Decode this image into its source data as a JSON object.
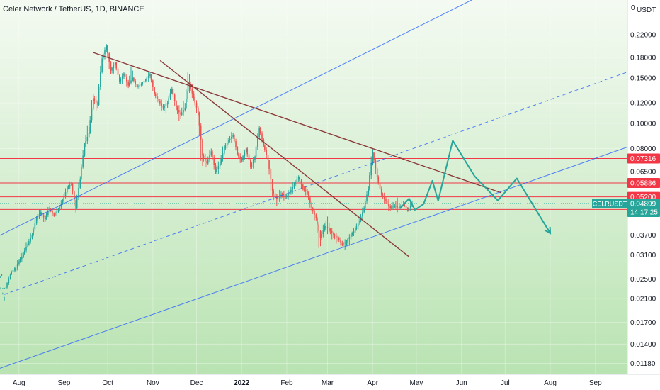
{
  "chart_data": {
    "type": "candlestick",
    "title": "Celer Network / TetherUS, 1D, BINANCE",
    "y_scale": "log",
    "y_unit": "USDT",
    "y_top_label": "0",
    "ylim": [
      0.0107,
      0.3
    ],
    "y_ticks": [
      "0.22000",
      "0.18000",
      "0.15000",
      "0.12000",
      "0.10000",
      "0.08000",
      "0.06500",
      "0.05200",
      "0.04899",
      "0.03700",
      "0.03100",
      "0.02500",
      "0.02100",
      "0.01700",
      "0.01400",
      "0.01180"
    ],
    "x_ticks": [
      "Aug",
      "Sep",
      "Oct",
      "Nov",
      "Dec",
      "2022",
      "Feb",
      "Mar",
      "Apr",
      "May",
      "Jun",
      "Jul",
      "Aug",
      "Sep"
    ],
    "x_range": [
      "2021-07-19",
      "2022-09-23"
    ],
    "horizontal_levels": [
      {
        "value": 0.07316,
        "label": "0.07316",
        "color": "#f23645"
      },
      {
        "value": 0.05886,
        "label": "0.05886",
        "color": "#f23645"
      },
      {
        "value": 0.052,
        "label": "0.05200",
        "color": "#f23645"
      },
      {
        "value": 0.04647,
        "label": "0.04647",
        "color": "#f23645"
      }
    ],
    "price_tag": {
      "symbol": "CELRUSDT",
      "price": "0.04899",
      "countdown": "14:17:25",
      "color": "#26a69a"
    },
    "trendlines": [
      {
        "role": "channel-upper",
        "color": "#2962ff",
        "style": "solid",
        "from": [
          "2021-07-19",
          0.0369
        ],
        "to": [
          "2022-06-08",
          0.3
        ]
      },
      {
        "role": "channel-middle",
        "color": "#2962ff",
        "style": "dashed",
        "from": [
          "2021-07-22",
          0.0218
        ],
        "to": [
          "2022-09-23",
          0.158
        ]
      },
      {
        "role": "channel-lower",
        "color": "#2962ff",
        "style": "solid",
        "from": [
          "2021-07-19",
          0.0113
        ],
        "to": [
          "2022-09-23",
          0.081
        ]
      },
      {
        "role": "resistance",
        "color": "#8b3a3a",
        "style": "solid",
        "from": [
          "2021-09-21",
          0.188
        ],
        "to": [
          "2022-06-28",
          0.054
        ]
      },
      {
        "role": "resistance",
        "color": "#8b3a3a",
        "style": "solid",
        "from": [
          "2021-11-06",
          0.175
        ],
        "to": [
          "2022-04-26",
          0.0305
        ]
      }
    ],
    "projection_path": {
      "color": "#26a69a",
      "points": [
        [
          "2022-04-20",
          0.047
        ],
        [
          "2022-04-26",
          0.0512
        ],
        [
          "2022-04-30",
          0.0463
        ],
        [
          "2022-05-06",
          0.0488
        ],
        [
          "2022-05-12",
          0.06
        ],
        [
          "2022-05-16",
          0.0502
        ],
        [
          "2022-05-26",
          0.0858
        ],
        [
          "2022-06-10",
          0.0625
        ],
        [
          "2022-06-26",
          0.0503
        ],
        [
          "2022-07-09",
          0.0613
        ],
        [
          "2022-08-01",
          0.0376
        ]
      ]
    },
    "candles": [
      [
        "2021-07-19",
        0.0248,
        0.0262,
        0.0232,
        0.0228
      ],
      [
        "2021-07-22",
        0.023,
        0.0232,
        0.0214,
        0.0206
      ],
      [
        "2021-07-25",
        0.0232,
        0.026,
        0.0266,
        0.0228
      ],
      [
        "2021-07-28",
        0.0262,
        0.0275,
        0.0282,
        0.0256
      ],
      [
        "2021-07-31",
        0.0268,
        0.0293,
        0.0305,
        0.0262
      ],
      [
        "2021-08-03",
        0.0293,
        0.0312,
        0.0322,
        0.0285
      ],
      [
        "2021-08-06",
        0.0312,
        0.0342,
        0.0358,
        0.0306
      ],
      [
        "2021-08-09",
        0.034,
        0.037,
        0.0386,
        0.0333
      ],
      [
        "2021-08-12",
        0.037,
        0.043,
        0.0446,
        0.0362
      ],
      [
        "2021-08-15",
        0.0428,
        0.0454,
        0.0472,
        0.0418
      ],
      [
        "2021-08-18",
        0.045,
        0.0425,
        0.0458,
        0.0408
      ],
      [
        "2021-08-21",
        0.0428,
        0.0472,
        0.049,
        0.042
      ],
      [
        "2021-08-24",
        0.0468,
        0.044,
        0.0475,
        0.043
      ],
      [
        "2021-08-27",
        0.0442,
        0.0462,
        0.0478,
        0.0432
      ],
      [
        "2021-08-30",
        0.0462,
        0.0505,
        0.052,
        0.045
      ],
      [
        "2021-09-02",
        0.0505,
        0.056,
        0.058,
        0.0495
      ],
      [
        "2021-09-05",
        0.056,
        0.0585,
        0.0605,
        0.055
      ],
      [
        "2021-09-08",
        0.0585,
        0.0465,
        0.059,
        0.044
      ],
      [
        "2021-09-11",
        0.047,
        0.061,
        0.064,
        0.046
      ],
      [
        "2021-09-14",
        0.061,
        0.082,
        0.086,
        0.06
      ],
      [
        "2021-09-17",
        0.082,
        0.092,
        0.102,
        0.08
      ],
      [
        "2021-09-20",
        0.092,
        0.125,
        0.135,
        0.09
      ],
      [
        "2021-09-23",
        0.125,
        0.118,
        0.13,
        0.11
      ],
      [
        "2021-09-26",
        0.118,
        0.178,
        0.188,
        0.115
      ],
      [
        "2021-09-29",
        0.178,
        0.2,
        0.205,
        0.17
      ],
      [
        "2021-10-02",
        0.2,
        0.16,
        0.202,
        0.15
      ],
      [
        "2021-10-05",
        0.16,
        0.172,
        0.176,
        0.152
      ],
      [
        "2021-10-08",
        0.172,
        0.145,
        0.173,
        0.14
      ],
      [
        "2021-10-11",
        0.145,
        0.156,
        0.16,
        0.138
      ],
      [
        "2021-10-14",
        0.156,
        0.14,
        0.16,
        0.134
      ],
      [
        "2021-10-17",
        0.14,
        0.15,
        0.17,
        0.138
      ],
      [
        "2021-10-20",
        0.15,
        0.138,
        0.152,
        0.134
      ],
      [
        "2021-10-23",
        0.138,
        0.142,
        0.146,
        0.135
      ],
      [
        "2021-10-26",
        0.142,
        0.148,
        0.15,
        0.138
      ],
      [
        "2021-10-29",
        0.148,
        0.155,
        0.16,
        0.142
      ],
      [
        "2021-11-01",
        0.155,
        0.13,
        0.156,
        0.125
      ],
      [
        "2021-11-04",
        0.13,
        0.122,
        0.134,
        0.118
      ],
      [
        "2021-11-07",
        0.122,
        0.115,
        0.126,
        0.11
      ],
      [
        "2021-11-10",
        0.115,
        0.12,
        0.125,
        0.108
      ],
      [
        "2021-11-13",
        0.12,
        0.136,
        0.142,
        0.118
      ],
      [
        "2021-11-16",
        0.136,
        0.115,
        0.138,
        0.11
      ],
      [
        "2021-11-19",
        0.115,
        0.108,
        0.12,
        0.1
      ],
      [
        "2021-11-22",
        0.108,
        0.115,
        0.125,
        0.105
      ],
      [
        "2021-11-25",
        0.115,
        0.142,
        0.168,
        0.112
      ],
      [
        "2021-11-28",
        0.142,
        0.125,
        0.148,
        0.12
      ],
      [
        "2021-12-01",
        0.125,
        0.11,
        0.128,
        0.105
      ],
      [
        "2021-12-04",
        0.11,
        0.075,
        0.112,
        0.062
      ],
      [
        "2021-12-07",
        0.075,
        0.07,
        0.078,
        0.066
      ],
      [
        "2021-12-10",
        0.07,
        0.078,
        0.082,
        0.068
      ],
      [
        "2021-12-13",
        0.078,
        0.065,
        0.08,
        0.062
      ],
      [
        "2021-12-16",
        0.065,
        0.07,
        0.073,
        0.062
      ],
      [
        "2021-12-19",
        0.07,
        0.08,
        0.085,
        0.068
      ],
      [
        "2021-12-22",
        0.08,
        0.086,
        0.09,
        0.078
      ],
      [
        "2021-12-25",
        0.086,
        0.09,
        0.094,
        0.083
      ],
      [
        "2021-12-28",
        0.09,
        0.076,
        0.092,
        0.074
      ],
      [
        "2021-12-31",
        0.076,
        0.072,
        0.078,
        0.069
      ],
      [
        "2022-01-03",
        0.072,
        0.08,
        0.082,
        0.07
      ],
      [
        "2022-01-06",
        0.08,
        0.068,
        0.082,
        0.065
      ],
      [
        "2022-01-09",
        0.068,
        0.074,
        0.076,
        0.065
      ],
      [
        "2022-01-12",
        0.074,
        0.096,
        0.099,
        0.072
      ],
      [
        "2022-01-15",
        0.096,
        0.082,
        0.098,
        0.08
      ],
      [
        "2022-01-18",
        0.082,
        0.072,
        0.084,
        0.07
      ],
      [
        "2022-01-21",
        0.072,
        0.055,
        0.073,
        0.05
      ],
      [
        "2022-01-24",
        0.055,
        0.051,
        0.057,
        0.045
      ],
      [
        "2022-01-27",
        0.051,
        0.053,
        0.056,
        0.049
      ],
      [
        "2022-01-30",
        0.053,
        0.052,
        0.055,
        0.05
      ],
      [
        "2022-02-02",
        0.052,
        0.054,
        0.056,
        0.05
      ],
      [
        "2022-02-05",
        0.054,
        0.058,
        0.061,
        0.052
      ],
      [
        "2022-02-08",
        0.058,
        0.062,
        0.064,
        0.056
      ],
      [
        "2022-02-11",
        0.062,
        0.056,
        0.063,
        0.054
      ],
      [
        "2022-02-14",
        0.056,
        0.054,
        0.058,
        0.052
      ],
      [
        "2022-02-17",
        0.054,
        0.047,
        0.055,
        0.045
      ],
      [
        "2022-02-20",
        0.047,
        0.043,
        0.048,
        0.041
      ],
      [
        "2022-02-23",
        0.043,
        0.036,
        0.044,
        0.031
      ],
      [
        "2022-02-26",
        0.036,
        0.04,
        0.042,
        0.035
      ],
      [
        "2022-03-01",
        0.04,
        0.039,
        0.044,
        0.037
      ],
      [
        "2022-03-04",
        0.039,
        0.037,
        0.04,
        0.035
      ],
      [
        "2022-03-07",
        0.037,
        0.036,
        0.038,
        0.034
      ],
      [
        "2022-03-10",
        0.036,
        0.034,
        0.037,
        0.033
      ],
      [
        "2022-03-13",
        0.034,
        0.035,
        0.036,
        0.032
      ],
      [
        "2022-03-16",
        0.035,
        0.037,
        0.038,
        0.033
      ],
      [
        "2022-03-19",
        0.037,
        0.039,
        0.04,
        0.036
      ],
      [
        "2022-03-22",
        0.039,
        0.042,
        0.044,
        0.038
      ],
      [
        "2022-03-25",
        0.042,
        0.047,
        0.049,
        0.041
      ],
      [
        "2022-03-28",
        0.047,
        0.056,
        0.058,
        0.046
      ],
      [
        "2022-03-31",
        0.056,
        0.077,
        0.082,
        0.054
      ],
      [
        "2022-04-03",
        0.077,
        0.062,
        0.078,
        0.059
      ],
      [
        "2022-04-06",
        0.062,
        0.053,
        0.064,
        0.051
      ],
      [
        "2022-04-09",
        0.053,
        0.05,
        0.055,
        0.048
      ],
      [
        "2022-04-12",
        0.05,
        0.047,
        0.052,
        0.045
      ],
      [
        "2022-04-15",
        0.047,
        0.048,
        0.05,
        0.046
      ],
      [
        "2022-04-18",
        0.048,
        0.047,
        0.052,
        0.045
      ],
      [
        "2022-04-21",
        0.047,
        0.049,
        0.051,
        0.046
      ],
      [
        "2022-04-24",
        0.049,
        0.046,
        0.05,
        0.045
      ],
      [
        "2022-04-27",
        0.046,
        0.049,
        0.051,
        0.045
      ]
    ]
  }
}
